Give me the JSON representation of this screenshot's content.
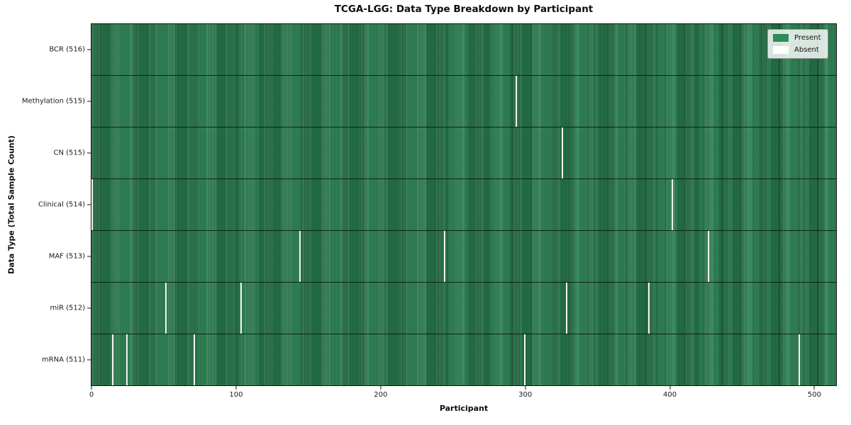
{
  "chart_data": {
    "type": "heatmap",
    "title": "TCGA-LGG: Data Type Breakdown by Participant",
    "xlabel": "Participant",
    "ylabel": "Data Type (Total Sample Count)",
    "n_participants": 516,
    "xlim": [
      0,
      516
    ],
    "x_ticks": [
      0,
      100,
      200,
      300,
      400,
      500
    ],
    "grid": false,
    "legend_position": "upper right",
    "colors": {
      "present": "#2e8b57",
      "absent": "#ffffff",
      "row_separator": "#14301e",
      "cell_edge": "#1c4a30"
    },
    "legend": [
      {
        "label": "Present",
        "color": "#2e8b57"
      },
      {
        "label": "Absent",
        "color": "#ffffff"
      }
    ],
    "rows": [
      {
        "label": "BCR (516)",
        "data_type": "BCR",
        "present_count": 516,
        "absent_participants": []
      },
      {
        "label": "Methylation (515)",
        "data_type": "Methylation",
        "present_count": 515,
        "absent_participants": [
          294
        ]
      },
      {
        "label": "CN (515)",
        "data_type": "CN",
        "present_count": 515,
        "absent_participants": [
          326
        ]
      },
      {
        "label": "Clinical (514)",
        "data_type": "Clinical",
        "present_count": 514,
        "absent_participants": [
          0,
          402
        ]
      },
      {
        "label": "MAF (513)",
        "data_type": "MAF",
        "present_count": 513,
        "absent_participants": [
          144,
          244,
          427
        ]
      },
      {
        "label": "miR (512)",
        "data_type": "miR",
        "present_count": 512,
        "absent_participants": [
          51,
          103,
          329,
          386
        ]
      },
      {
        "label": "mRNA (511)",
        "data_type": "mRNA",
        "present_count": 511,
        "absent_participants": [
          14,
          24,
          71,
          300,
          490
        ]
      }
    ]
  }
}
